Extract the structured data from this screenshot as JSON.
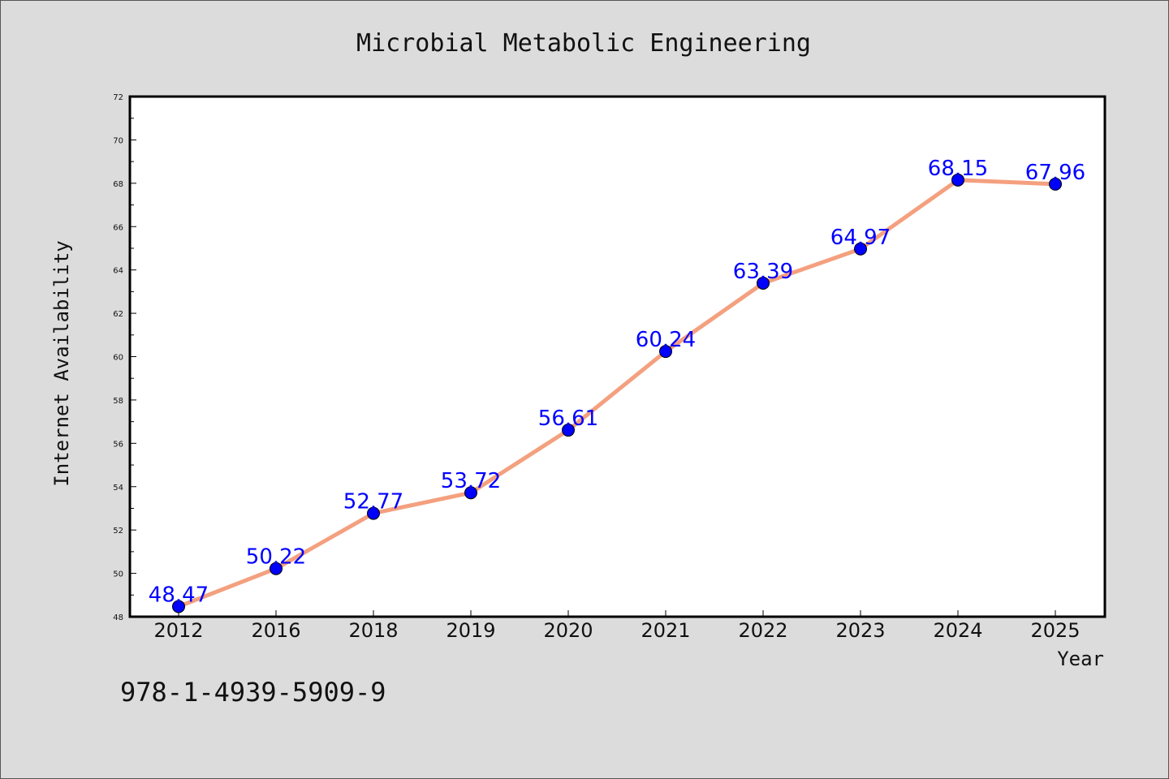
{
  "chart_data": {
    "type": "line",
    "title": "Microbial Metabolic Engineering",
    "xlabel": "Year",
    "ylabel": "Internet Availability",
    "categories": [
      "2012",
      "2016",
      "2018",
      "2019",
      "2020",
      "2021",
      "2022",
      "2023",
      "2024",
      "2025"
    ],
    "values": [
      48.47,
      50.22,
      52.77,
      53.72,
      56.61,
      60.24,
      63.39,
      64.97,
      68.15,
      67.96
    ],
    "data_labels": [
      "48.47",
      "50.22",
      "52.77",
      "53.72",
      "56.61",
      "60.24",
      "63.39",
      "64.97",
      "68.15",
      "67.96"
    ],
    "ylim": [
      48,
      72
    ],
    "yticks": [
      48,
      50,
      52,
      54,
      56,
      58,
      60,
      62,
      64,
      66,
      68,
      70,
      72
    ],
    "grid": false,
    "line_color": "#f4a07f",
    "marker_color": "#0000ff",
    "label_color": "#0000ff",
    "background_color": "#dcdcdc",
    "plot_background": "#ffffff"
  },
  "footer": {
    "isbn": "978-1-4939-5909-9"
  }
}
